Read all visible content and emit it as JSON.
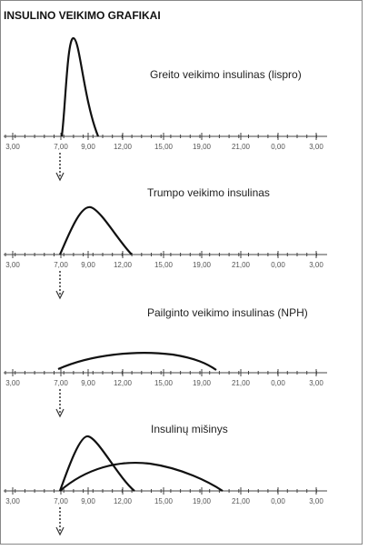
{
  "header": {
    "title": "INSULINO VEIKIMO GRAFIKAI"
  },
  "axis": {
    "ticks": [
      "3,00",
      "7,00",
      "9,00",
      "12,00",
      "15,00",
      "19,00",
      "21,00",
      "0,00",
      "3,00"
    ]
  },
  "panels": [
    {
      "label": "Greito veikimo insulinas (lispro)"
    },
    {
      "label": "Trumpo veikimo insulinas"
    },
    {
      "label": "Pailginto veikimo insulinas (NPH)"
    },
    {
      "label": "Insulinų mišinys"
    }
  ]
}
